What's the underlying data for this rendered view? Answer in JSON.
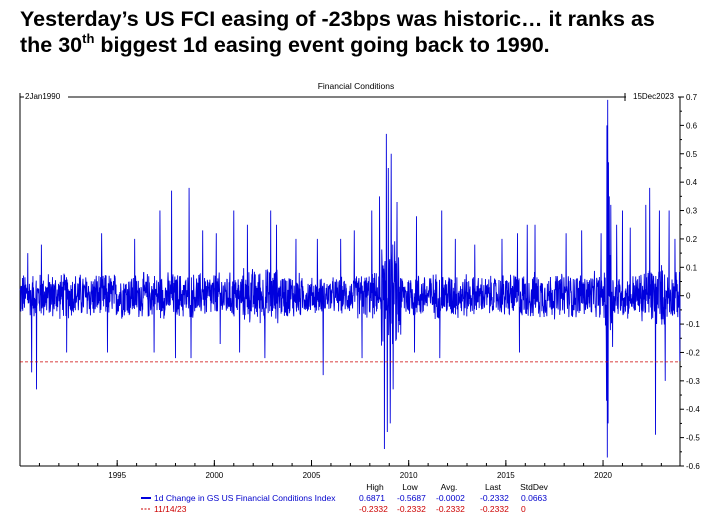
{
  "headline": {
    "line1": "Yesterday’s US FCI easing of -23bps was historic… it ranks as",
    "line2_pre": "the 30",
    "line2_sup": "th",
    "line2_post": " biggest 1d easing event going back to 1990."
  },
  "colors": {
    "series": "#0000dd",
    "reference": "#cc0000",
    "axis": "#000000",
    "background": "#ffffff"
  },
  "chart_data": {
    "type": "line",
    "title": "Financial Conditions",
    "start_label": "2Jan1990",
    "end_label": "15Dec2023",
    "x_range": [
      1990.0,
      2023.96
    ],
    "ylim": [
      -0.6,
      0.7
    ],
    "grid": false,
    "x_ticks": [
      "1995",
      "2000",
      "2005",
      "2010",
      "2015",
      "2020"
    ],
    "y_ticks": [
      "0.7",
      "0.6",
      "0.5",
      "0.4",
      "0.3",
      "0.2",
      "0.1",
      "0",
      "-0.1",
      "-0.2",
      "-0.3",
      "-0.4",
      "-0.5",
      "-0.6"
    ],
    "legend_placement": "bottom",
    "stat_headers": [
      "High",
      "Low",
      "Avg.",
      "Last",
      "StdDev"
    ],
    "series": [
      {
        "name": "1d Change in GS US Financial Conditions Index",
        "style": "solid",
        "stats": [
          "0.6871",
          "-0.5687",
          "-0.0002",
          "-0.2332",
          "0.0663"
        ],
        "typical_amplitude": 0.09,
        "spikes": [
          {
            "x": 1990.4,
            "y": 0.15
          },
          {
            "x": 1990.6,
            "y": -0.27
          },
          {
            "x": 1990.85,
            "y": -0.33
          },
          {
            "x": 1991.1,
            "y": 0.18
          },
          {
            "x": 1992.4,
            "y": -0.2
          },
          {
            "x": 1994.2,
            "y": 0.22
          },
          {
            "x": 1994.5,
            "y": -0.2
          },
          {
            "x": 1995.9,
            "y": 0.2
          },
          {
            "x": 1996.9,
            "y": -0.2
          },
          {
            "x": 1997.2,
            "y": 0.3
          },
          {
            "x": 1997.8,
            "y": 0.37
          },
          {
            "x": 1998.0,
            "y": -0.22
          },
          {
            "x": 1998.7,
            "y": 0.38
          },
          {
            "x": 1998.8,
            "y": -0.22
          },
          {
            "x": 1999.4,
            "y": 0.23
          },
          {
            "x": 2000.1,
            "y": 0.22
          },
          {
            "x": 2000.3,
            "y": -0.17
          },
          {
            "x": 2001.0,
            "y": 0.3
          },
          {
            "x": 2001.3,
            "y": -0.2
          },
          {
            "x": 2001.7,
            "y": 0.25
          },
          {
            "x": 2002.6,
            "y": -0.22
          },
          {
            "x": 2002.9,
            "y": 0.3
          },
          {
            "x": 2003.2,
            "y": 0.25
          },
          {
            "x": 2004.2,
            "y": 0.2
          },
          {
            "x": 2005.3,
            "y": 0.2
          },
          {
            "x": 2005.6,
            "y": -0.28
          },
          {
            "x": 2006.5,
            "y": 0.2
          },
          {
            "x": 2007.2,
            "y": 0.23
          },
          {
            "x": 2007.6,
            "y": -0.22
          },
          {
            "x": 2008.1,
            "y": 0.3
          },
          {
            "x": 2008.5,
            "y": 0.35
          },
          {
            "x": 2008.75,
            "y": -0.54
          },
          {
            "x": 2008.85,
            "y": 0.57
          },
          {
            "x": 2008.9,
            "y": -0.48
          },
          {
            "x": 2008.95,
            "y": 0.45
          },
          {
            "x": 2009.05,
            "y": -0.45
          },
          {
            "x": 2009.1,
            "y": 0.5
          },
          {
            "x": 2009.2,
            "y": -0.33
          },
          {
            "x": 2009.4,
            "y": 0.33
          },
          {
            "x": 2010.3,
            "y": -0.2
          },
          {
            "x": 2010.4,
            "y": 0.28
          },
          {
            "x": 2011.6,
            "y": -0.22
          },
          {
            "x": 2011.7,
            "y": 0.3
          },
          {
            "x": 2012.4,
            "y": 0.2
          },
          {
            "x": 2013.4,
            "y": 0.18
          },
          {
            "x": 2014.8,
            "y": 0.2
          },
          {
            "x": 2015.6,
            "y": 0.22
          },
          {
            "x": 2015.7,
            "y": -0.2
          },
          {
            "x": 2016.1,
            "y": 0.25
          },
          {
            "x": 2016.5,
            "y": 0.25
          },
          {
            "x": 2018.1,
            "y": 0.22
          },
          {
            "x": 2018.9,
            "y": 0.23
          },
          {
            "x": 2019.9,
            "y": 0.22
          },
          {
            "x": 2020.18,
            "y": -0.37
          },
          {
            "x": 2020.2,
            "y": 0.6
          },
          {
            "x": 2020.22,
            "y": -0.57
          },
          {
            "x": 2020.24,
            "y": 0.69
          },
          {
            "x": 2020.26,
            "y": -0.45
          },
          {
            "x": 2020.28,
            "y": 0.47
          },
          {
            "x": 2020.32,
            "y": 0.35
          },
          {
            "x": 2020.4,
            "y": 0.32
          },
          {
            "x": 2020.7,
            "y": 0.25
          },
          {
            "x": 2021.0,
            "y": 0.3
          },
          {
            "x": 2021.4,
            "y": 0.24
          },
          {
            "x": 2022.2,
            "y": 0.32
          },
          {
            "x": 2022.4,
            "y": 0.38
          },
          {
            "x": 2022.7,
            "y": -0.49
          },
          {
            "x": 2022.9,
            "y": 0.3
          },
          {
            "x": 2023.2,
            "y": -0.3
          },
          {
            "x": 2023.4,
            "y": 0.3
          },
          {
            "x": 2023.7,
            "y": 0.2
          },
          {
            "x": 2023.95,
            "y": -0.23
          }
        ]
      },
      {
        "name": "11/14/23",
        "style": "dashed",
        "value": -0.2332,
        "stats": [
          "-0.2332",
          "-0.2332",
          "-0.2332",
          "-0.2332",
          "0"
        ]
      }
    ]
  }
}
